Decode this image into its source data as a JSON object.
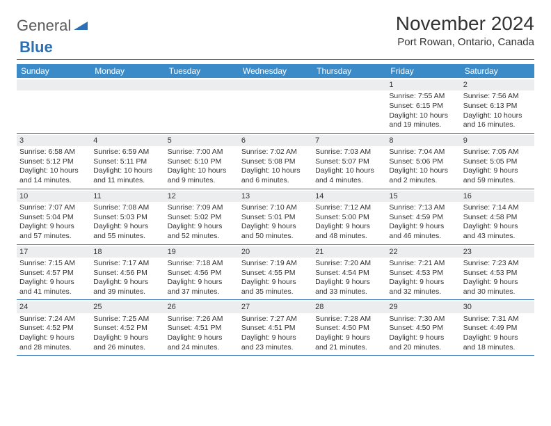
{
  "logo": {
    "word1": "General",
    "word2": "Blue",
    "text_color": "#5a5a5a",
    "accent_color": "#2d6fb4"
  },
  "header": {
    "month_title": "November 2024",
    "location": "Port Rowan, Ontario, Canada"
  },
  "colors": {
    "header_bar": "#3b8bc9",
    "divider": "#3a7ab8",
    "daynum_bg": "#ecedee",
    "text": "#333333",
    "bg": "#ffffff"
  },
  "weekdays": [
    "Sunday",
    "Monday",
    "Tuesday",
    "Wednesday",
    "Thursday",
    "Friday",
    "Saturday"
  ],
  "weeks": [
    [
      {
        "n": "",
        "sr": "",
        "ss": "",
        "dl": ""
      },
      {
        "n": "",
        "sr": "",
        "ss": "",
        "dl": ""
      },
      {
        "n": "",
        "sr": "",
        "ss": "",
        "dl": ""
      },
      {
        "n": "",
        "sr": "",
        "ss": "",
        "dl": ""
      },
      {
        "n": "",
        "sr": "",
        "ss": "",
        "dl": ""
      },
      {
        "n": "1",
        "sr": "Sunrise: 7:55 AM",
        "ss": "Sunset: 6:15 PM",
        "dl": "Daylight: 10 hours and 19 minutes."
      },
      {
        "n": "2",
        "sr": "Sunrise: 7:56 AM",
        "ss": "Sunset: 6:13 PM",
        "dl": "Daylight: 10 hours and 16 minutes."
      }
    ],
    [
      {
        "n": "3",
        "sr": "Sunrise: 6:58 AM",
        "ss": "Sunset: 5:12 PM",
        "dl": "Daylight: 10 hours and 14 minutes."
      },
      {
        "n": "4",
        "sr": "Sunrise: 6:59 AM",
        "ss": "Sunset: 5:11 PM",
        "dl": "Daylight: 10 hours and 11 minutes."
      },
      {
        "n": "5",
        "sr": "Sunrise: 7:00 AM",
        "ss": "Sunset: 5:10 PM",
        "dl": "Daylight: 10 hours and 9 minutes."
      },
      {
        "n": "6",
        "sr": "Sunrise: 7:02 AM",
        "ss": "Sunset: 5:08 PM",
        "dl": "Daylight: 10 hours and 6 minutes."
      },
      {
        "n": "7",
        "sr": "Sunrise: 7:03 AM",
        "ss": "Sunset: 5:07 PM",
        "dl": "Daylight: 10 hours and 4 minutes."
      },
      {
        "n": "8",
        "sr": "Sunrise: 7:04 AM",
        "ss": "Sunset: 5:06 PM",
        "dl": "Daylight: 10 hours and 2 minutes."
      },
      {
        "n": "9",
        "sr": "Sunrise: 7:05 AM",
        "ss": "Sunset: 5:05 PM",
        "dl": "Daylight: 9 hours and 59 minutes."
      }
    ],
    [
      {
        "n": "10",
        "sr": "Sunrise: 7:07 AM",
        "ss": "Sunset: 5:04 PM",
        "dl": "Daylight: 9 hours and 57 minutes."
      },
      {
        "n": "11",
        "sr": "Sunrise: 7:08 AM",
        "ss": "Sunset: 5:03 PM",
        "dl": "Daylight: 9 hours and 55 minutes."
      },
      {
        "n": "12",
        "sr": "Sunrise: 7:09 AM",
        "ss": "Sunset: 5:02 PM",
        "dl": "Daylight: 9 hours and 52 minutes."
      },
      {
        "n": "13",
        "sr": "Sunrise: 7:10 AM",
        "ss": "Sunset: 5:01 PM",
        "dl": "Daylight: 9 hours and 50 minutes."
      },
      {
        "n": "14",
        "sr": "Sunrise: 7:12 AM",
        "ss": "Sunset: 5:00 PM",
        "dl": "Daylight: 9 hours and 48 minutes."
      },
      {
        "n": "15",
        "sr": "Sunrise: 7:13 AM",
        "ss": "Sunset: 4:59 PM",
        "dl": "Daylight: 9 hours and 46 minutes."
      },
      {
        "n": "16",
        "sr": "Sunrise: 7:14 AM",
        "ss": "Sunset: 4:58 PM",
        "dl": "Daylight: 9 hours and 43 minutes."
      }
    ],
    [
      {
        "n": "17",
        "sr": "Sunrise: 7:15 AM",
        "ss": "Sunset: 4:57 PM",
        "dl": "Daylight: 9 hours and 41 minutes."
      },
      {
        "n": "18",
        "sr": "Sunrise: 7:17 AM",
        "ss": "Sunset: 4:56 PM",
        "dl": "Daylight: 9 hours and 39 minutes."
      },
      {
        "n": "19",
        "sr": "Sunrise: 7:18 AM",
        "ss": "Sunset: 4:56 PM",
        "dl": "Daylight: 9 hours and 37 minutes."
      },
      {
        "n": "20",
        "sr": "Sunrise: 7:19 AM",
        "ss": "Sunset: 4:55 PM",
        "dl": "Daylight: 9 hours and 35 minutes."
      },
      {
        "n": "21",
        "sr": "Sunrise: 7:20 AM",
        "ss": "Sunset: 4:54 PM",
        "dl": "Daylight: 9 hours and 33 minutes."
      },
      {
        "n": "22",
        "sr": "Sunrise: 7:21 AM",
        "ss": "Sunset: 4:53 PM",
        "dl": "Daylight: 9 hours and 32 minutes."
      },
      {
        "n": "23",
        "sr": "Sunrise: 7:23 AM",
        "ss": "Sunset: 4:53 PM",
        "dl": "Daylight: 9 hours and 30 minutes."
      }
    ],
    [
      {
        "n": "24",
        "sr": "Sunrise: 7:24 AM",
        "ss": "Sunset: 4:52 PM",
        "dl": "Daylight: 9 hours and 28 minutes."
      },
      {
        "n": "25",
        "sr": "Sunrise: 7:25 AM",
        "ss": "Sunset: 4:52 PM",
        "dl": "Daylight: 9 hours and 26 minutes."
      },
      {
        "n": "26",
        "sr": "Sunrise: 7:26 AM",
        "ss": "Sunset: 4:51 PM",
        "dl": "Daylight: 9 hours and 24 minutes."
      },
      {
        "n": "27",
        "sr": "Sunrise: 7:27 AM",
        "ss": "Sunset: 4:51 PM",
        "dl": "Daylight: 9 hours and 23 minutes."
      },
      {
        "n": "28",
        "sr": "Sunrise: 7:28 AM",
        "ss": "Sunset: 4:50 PM",
        "dl": "Daylight: 9 hours and 21 minutes."
      },
      {
        "n": "29",
        "sr": "Sunrise: 7:30 AM",
        "ss": "Sunset: 4:50 PM",
        "dl": "Daylight: 9 hours and 20 minutes."
      },
      {
        "n": "30",
        "sr": "Sunrise: 7:31 AM",
        "ss": "Sunset: 4:49 PM",
        "dl": "Daylight: 9 hours and 18 minutes."
      }
    ]
  ]
}
